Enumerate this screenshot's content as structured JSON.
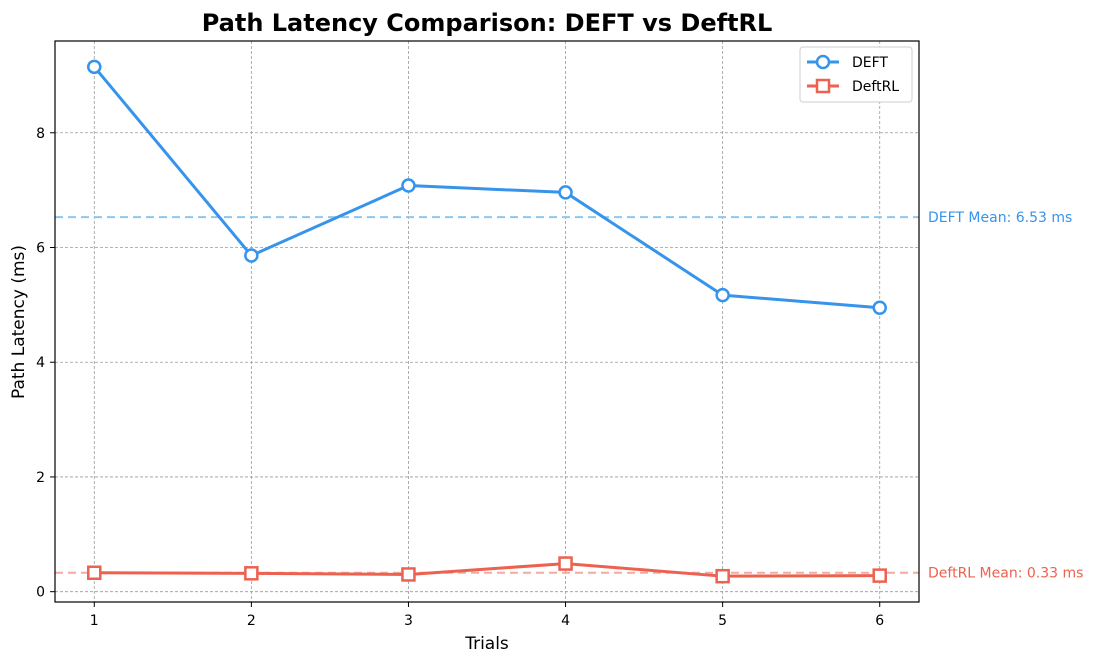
{
  "chart_data": {
    "type": "line",
    "title": "Path Latency Comparison: DEFT vs DeftRL",
    "xlabel": "Trials",
    "ylabel": "Path Latency (ms)",
    "x": [
      1,
      2,
      3,
      4,
      5,
      6
    ],
    "xlim": [
      0.75,
      6.25
    ],
    "ylim": [
      -0.18,
      9.6
    ],
    "xticks": [
      "1",
      "2",
      "3",
      "4",
      "5",
      "6"
    ],
    "yticks": [
      0,
      2,
      4,
      6,
      8
    ],
    "grid": true,
    "legend_position": "top-right",
    "series": [
      {
        "name": "DEFT",
        "values": [
          9.15,
          5.86,
          7.08,
          6.96,
          5.17,
          4.95
        ],
        "color": "#3694ec",
        "marker": "circle",
        "mean": 6.53,
        "mean_label": "DEFT Mean: 6.53 ms",
        "mean_color": "#8ec8ee"
      },
      {
        "name": "DeftRL",
        "values": [
          0.33,
          0.32,
          0.3,
          0.49,
          0.27,
          0.28
        ],
        "color": "#ed6150",
        "marker": "square",
        "mean": 0.33,
        "mean_label": "DeftRL Mean: 0.33 ms",
        "mean_color": "#f3aaa0"
      }
    ]
  }
}
